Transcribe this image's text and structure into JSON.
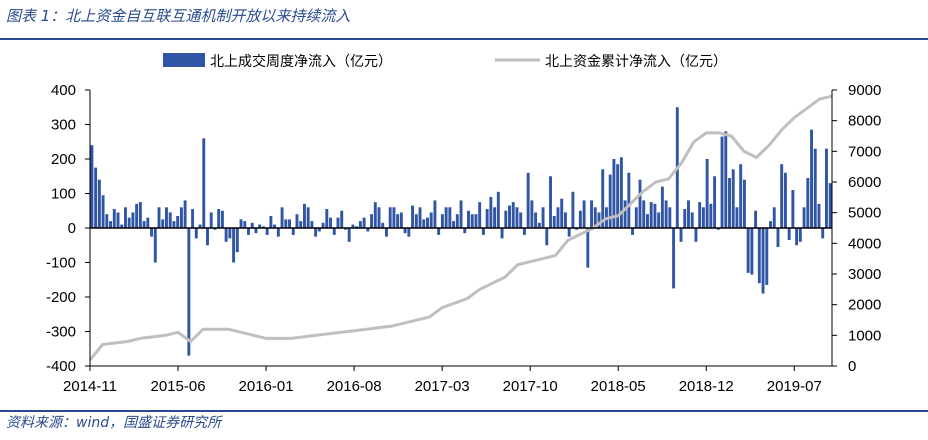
{
  "figure": {
    "title": "图表 1：北上资金自互联互通机制开放以来持续流入",
    "source": "资料来源：wind，国盛证券研究所"
  },
  "colors": {
    "bar": "#2f55a4",
    "line": "#bfbfbf",
    "accent": "#2a4a8f"
  },
  "chart_data": {
    "type": "bar",
    "title": "",
    "legend": {
      "placement": "top",
      "entries": [
        "北上成交周度净流入（亿元）",
        "北上资金累计净流入（亿元）"
      ]
    },
    "x_tick_labels": [
      "2014-11",
      "2015-06",
      "2016-01",
      "2016-08",
      "2017-03",
      "2017-10",
      "2018-05",
      "2018-12",
      "2019-07"
    ],
    "y_left": {
      "range": [
        -400,
        400
      ],
      "ticks": [
        -400,
        -300,
        -200,
        -100,
        0,
        100,
        200,
        300,
        400
      ]
    },
    "y_right": {
      "range": [
        0,
        9000
      ],
      "ticks": [
        0,
        1000,
        2000,
        3000,
        4000,
        5000,
        6000,
        7000,
        8000,
        9000
      ]
    },
    "grid": false,
    "series": [
      {
        "name": "北上成交周度净流入（亿元）",
        "axis": "left",
        "type": "bar",
        "values": [
          240,
          175,
          140,
          95,
          40,
          20,
          55,
          45,
          10,
          60,
          30,
          45,
          70,
          75,
          20,
          30,
          -25,
          -100,
          60,
          25,
          60,
          45,
          20,
          35,
          60,
          80,
          -370,
          55,
          -30,
          10,
          260,
          -50,
          45,
          -5,
          55,
          50,
          -40,
          -30,
          -100,
          -70,
          25,
          20,
          -20,
          15,
          -15,
          10,
          5,
          -20,
          35,
          10,
          -25,
          60,
          25,
          25,
          -20,
          40,
          20,
          70,
          60,
          20,
          -25,
          -10,
          15,
          55,
          30,
          -20,
          30,
          50,
          -5,
          -40,
          10,
          5,
          20,
          30,
          -10,
          40,
          75,
          60,
          15,
          -25,
          60,
          60,
          40,
          45,
          -15,
          -25,
          65,
          40,
          60,
          25,
          30,
          45,
          80,
          -20,
          40,
          60,
          60,
          20,
          40,
          80,
          -15,
          50,
          40,
          40,
          75,
          -20,
          55,
          90,
          60,
          105,
          -30,
          50,
          65,
          75,
          60,
          45,
          -20,
          160,
          80,
          45,
          15,
          60,
          -50,
          150,
          35,
          60,
          85,
          45,
          -25,
          105,
          -5,
          50,
          80,
          -115,
          80,
          60,
          45,
          170,
          60,
          155,
          200,
          185,
          205,
          80,
          160,
          -20,
          60,
          140,
          80,
          40,
          75,
          70,
          45,
          120,
          80,
          60,
          -175,
          350,
          -40,
          55,
          80,
          45,
          -40,
          75,
          60,
          200,
          70,
          150,
          -5,
          265,
          280,
          145,
          170,
          60,
          185,
          140,
          -130,
          -135,
          50,
          -160,
          -190,
          -165,
          20,
          60,
          -55,
          185,
          160,
          -35,
          110,
          -50,
          -40,
          60,
          145,
          285,
          230,
          70,
          -30,
          230,
          130
        ]
      },
      {
        "name": "北上资金累计净流入（亿元）",
        "axis": "right",
        "type": "line",
        "points": [
          [
            "2014-11",
            200
          ],
          [
            "2014-12",
            700
          ],
          [
            "2015-02",
            800
          ],
          [
            "2015-03",
            900
          ],
          [
            "2015-05",
            1000
          ],
          [
            "2015-06",
            1100
          ],
          [
            "2015-07",
            800
          ],
          [
            "2015-08",
            1200
          ],
          [
            "2015-10",
            1200
          ],
          [
            "2015-12",
            1000
          ],
          [
            "2016-01",
            900
          ],
          [
            "2016-03",
            900
          ],
          [
            "2016-05",
            1000
          ],
          [
            "2016-07",
            1100
          ],
          [
            "2016-09",
            1200
          ],
          [
            "2016-11",
            1300
          ],
          [
            "2016-12",
            1400
          ],
          [
            "2017-02",
            1600
          ],
          [
            "2017-03",
            1900
          ],
          [
            "2017-05",
            2200
          ],
          [
            "2017-06",
            2500
          ],
          [
            "2017-08",
            2900
          ],
          [
            "2017-09",
            3300
          ],
          [
            "2017-10",
            3400
          ],
          [
            "2017-12",
            3600
          ],
          [
            "2018-01",
            4100
          ],
          [
            "2018-03",
            4500
          ],
          [
            "2018-04",
            4800
          ],
          [
            "2018-05",
            4900
          ],
          [
            "2018-06",
            5300
          ],
          [
            "2018-07",
            5700
          ],
          [
            "2018-08",
            6000
          ],
          [
            "2018-09",
            6100
          ],
          [
            "2018-10",
            6600
          ],
          [
            "2018-11",
            7300
          ],
          [
            "2018-12",
            7600
          ],
          [
            "2019-01",
            7600
          ],
          [
            "2019-02",
            7500
          ],
          [
            "2019-03",
            7000
          ],
          [
            "2019-04",
            6800
          ],
          [
            "2019-05",
            7200
          ],
          [
            "2019-06",
            7700
          ],
          [
            "2019-07",
            8100
          ],
          [
            "2019-08",
            8400
          ],
          [
            "2019-09",
            8700
          ],
          [
            "2019-10",
            8800
          ]
        ]
      }
    ]
  }
}
